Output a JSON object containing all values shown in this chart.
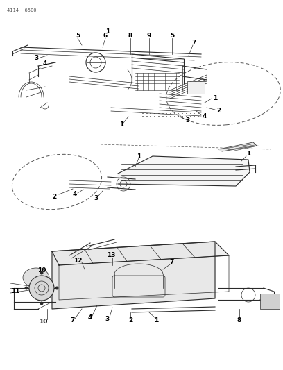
{
  "page_id": "4114  6500",
  "background_color": "#ffffff",
  "line_color": "#2a2a2a",
  "label_color": "#000000",
  "page_id_color": "#555555",
  "fig_width": 4.08,
  "fig_height": 5.33,
  "dpi": 100
}
